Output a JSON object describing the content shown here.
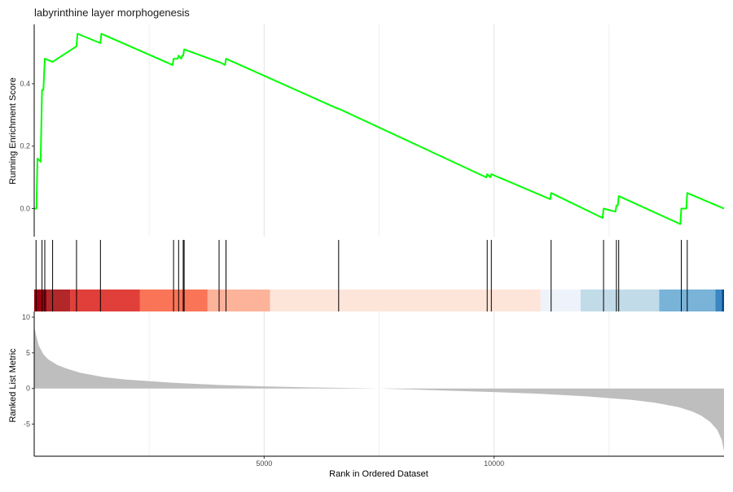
{
  "chart_data": {
    "type": "line",
    "title": "labyrinthine layer morphogenesis",
    "xlabel": "Rank in Ordered Dataset",
    "xlim": [
      0,
      15000
    ],
    "x_ticks": [
      5000,
      10000
    ],
    "x_tick_labels": [
      "5000",
      "10000"
    ],
    "panels": [
      {
        "name": "running-enrichment",
        "ylabel": "Running Enrichment Score",
        "ylim": [
          -0.09,
          0.59
        ],
        "y_ticks": [
          0.0,
          0.2,
          0.4
        ],
        "y_tick_labels": [
          "0.0",
          "0.2",
          "0.4"
        ],
        "line_color": "#00FF00",
        "series": [
          {
            "x": [
              0,
              50,
              70,
              140,
              170,
              200,
              230,
              400,
              920,
              940,
              1440,
              1460,
              3010,
              3030,
              3120,
              3140,
              3200,
              3220,
              3240,
              3260,
              4000,
              4020,
              4150,
              4170,
              6600,
              6620,
              9830,
              9850,
              9920,
              9940,
              11220,
              11240,
              12360,
              12380,
              12640,
              12660,
              12690,
              12710,
              14050,
              14070,
              14180,
              14200,
              15000
            ],
            "y": [
              0.0,
              0.0,
              0.16,
              0.15,
              0.38,
              0.38,
              0.48,
              0.47,
              0.52,
              0.56,
              0.53,
              0.56,
              0.46,
              0.48,
              0.48,
              0.49,
              0.48,
              0.49,
              0.49,
              0.51,
              0.47,
              0.47,
              0.46,
              0.48,
              0.32,
              0.32,
              0.1,
              0.11,
              0.1,
              0.11,
              0.03,
              0.05,
              -0.03,
              0.0,
              -0.01,
              0.01,
              0.01,
              0.04,
              -0.05,
              0.0,
              0.0,
              0.05,
              0.0
            ]
          }
        ]
      },
      {
        "name": "gene-hits",
        "hit_ranks": [
          40,
          170,
          230,
          400,
          920,
          1440,
          3030,
          3140,
          3240,
          3260,
          4020,
          4170,
          6620,
          9850,
          9940,
          11240,
          12380,
          12660,
          12710,
          14070,
          14200
        ],
        "color_bands": [
          {
            "from": 0,
            "to": 280,
            "color": "#99000D"
          },
          {
            "from": 280,
            "to": 780,
            "color": "#B2282A"
          },
          {
            "from": 780,
            "to": 2300,
            "color": "#E13F3A"
          },
          {
            "from": 2300,
            "to": 3770,
            "color": "#FA7457"
          },
          {
            "from": 3770,
            "to": 5130,
            "color": "#FCB39A"
          },
          {
            "from": 5130,
            "to": 11010,
            "color": "#FEE5DA"
          },
          {
            "from": 11010,
            "to": 11880,
            "color": "#EEF3FB"
          },
          {
            "from": 11880,
            "to": 13590,
            "color": "#C2DBE9"
          },
          {
            "from": 13590,
            "to": 14810,
            "color": "#79B3D8"
          },
          {
            "from": 14810,
            "to": 14950,
            "color": "#3B87C2"
          },
          {
            "from": 14950,
            "to": 15000,
            "color": "#084A91"
          }
        ]
      },
      {
        "name": "ranked-list",
        "ylabel": "Ranked List Metric",
        "ylim": [
          -9.5,
          10.8
        ],
        "y_ticks": [
          10,
          5,
          0,
          -5
        ],
        "y_tick_labels": [
          "10",
          "5",
          "0",
          "-5"
        ],
        "fill_color": "#BEBEBE",
        "series": [
          {
            "x": [
              0,
              40,
              100,
              200,
              300,
              500,
              700,
              1000,
              1500,
              2000,
              3000,
              4000,
              5000,
              6000,
              7000,
              7500,
              8000,
              9000,
              10000,
              11000,
              12000,
              13000,
              13500,
              14000,
              14300,
              14500,
              14700,
              14850,
              14950,
              15000
            ],
            "y": [
              8.7,
              7.5,
              6.0,
              4.8,
              4.1,
              3.3,
              2.8,
              2.2,
              1.6,
              1.25,
              0.8,
              0.5,
              0.3,
              0.15,
              0.05,
              0.0,
              -0.1,
              -0.3,
              -0.5,
              -0.75,
              -1.1,
              -1.6,
              -2.0,
              -2.6,
              -3.2,
              -3.8,
              -4.7,
              -5.8,
              -7.2,
              -8.8
            ]
          }
        ]
      }
    ]
  }
}
